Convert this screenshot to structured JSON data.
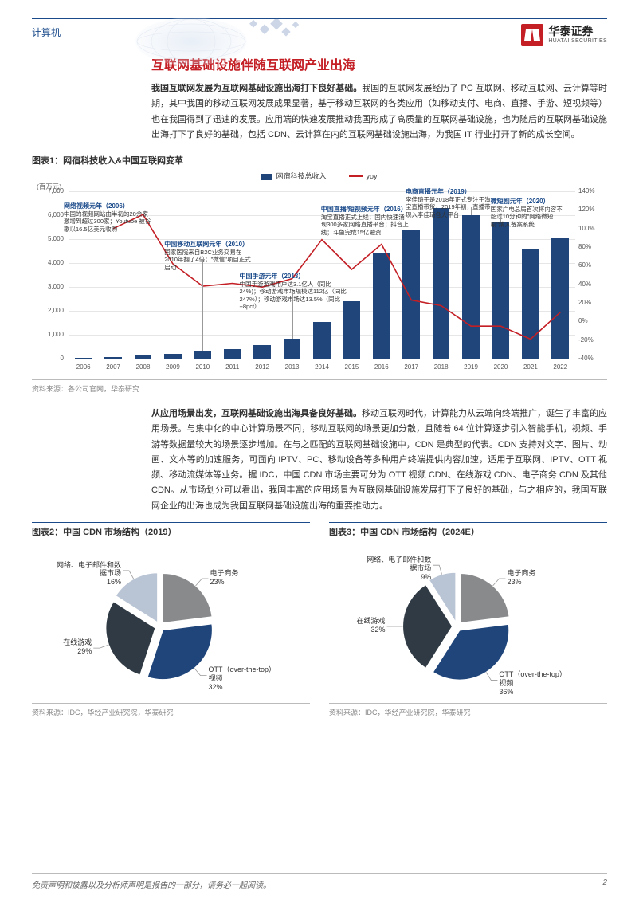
{
  "header": {
    "category": "计算机",
    "logo_cn": "华泰证券",
    "logo_en": "HUATAI SECURITIES"
  },
  "section_title": "互联网基础设施伴随互联网产业出海",
  "para1_lead": "我国互联网发展为互联网基础设施出海打下良好基础。",
  "para1": "我国的互联网发展经历了 PC 互联网、移动互联网、云计算等时期，其中我国的移动互联网发展成果显著，基于移动互联网的各类应用（如移动支付、电商、直播、手游、短视频等）也在我国得到了迅速的发展。应用端的快速发展推动我国形成了高质量的互联网基础设施，也为随后的互联网基础设施出海打下了良好的基础，包括 CDN、云计算在内的互联网基础设施出海，为我国 IT 行业打开了新的成长空间。",
  "chart1": {
    "title": "图表1：网宿科技收入&中国互联网变革",
    "unit_left": "(百万元)",
    "legend_bar": "网宿科技总收入",
    "legend_line": "yoy",
    "years": [
      "2006",
      "2007",
      "2008",
      "2009",
      "2010",
      "2011",
      "2012",
      "2013",
      "2014",
      "2015",
      "2016",
      "2017",
      "2018",
      "2019",
      "2020",
      "2021",
      "2022"
    ],
    "bar_values": [
      30,
      60,
      130,
      210,
      290,
      410,
      560,
      820,
      1540,
      2400,
      4400,
      5400,
      6300,
      6000,
      5700,
      4600,
      5050
    ],
    "yoy_values": [
      0,
      100,
      115,
      62,
      38,
      41,
      37,
      46,
      88,
      56,
      83,
      23,
      17,
      -5,
      -5,
      -19,
      10
    ],
    "y_left": {
      "min": 0,
      "max": 7000,
      "step": 1000
    },
    "y_right": {
      "min": -40,
      "max": 140,
      "step": 20,
      "suffix": "%"
    },
    "bar_color": "#1f457a",
    "line_color": "#c31f25",
    "grid_color": "#e6e6e6",
    "bg_color": "#ffffff",
    "annotations": [
      {
        "key": "a2006",
        "title": "网络视频元年（2006）",
        "body": "中国的视频网站由半初的20余家激增到超过300家；Youtube 被谷歌以16.5亿美元收购"
      },
      {
        "key": "a2010",
        "title": "中国移动互联网元年（2010）",
        "body": "国家医院来自B2C业务交易在2010年翻了4倍；\"微信\"项目正式启动"
      },
      {
        "key": "a2013",
        "title": "中国手游元年（2013）",
        "body": "中国手游游戏用户达3.1亿人（同比24%)；移动游戏市场规模达112亿（同比247%）；移动游戏市场达13.5%（同比+8pct）"
      },
      {
        "key": "a2016",
        "title": "中国直播/短视频元年（2016）",
        "body": "淘宝直播正式上线；国内快速涌现300多家网络直播平台；抖音上线；斗鱼完成15亿融资"
      },
      {
        "key": "a2019",
        "title": "电商直播元年（2019）",
        "body": "李佳琦于是2018年正式专注于淘宝直播带货，2019年初，直播带现入李佳琦各大平台"
      },
      {
        "key": "a2020",
        "title": "微短剧元年（2020）",
        "body": "国家广电总局首次将内容不超过10分钟的\"网络微短剧\"纳入备案系统"
      }
    ],
    "source": "资料来源：各公司官网，华泰研究"
  },
  "para2_lead": "从应用场景出发，互联网基础设施出海具备良好基础。",
  "para2": "移动互联网时代，计算能力从云端向终端推广，诞生了丰富的应用场景。与集中化的中心计算场景不同，移动互联网的场景更加分散，且随着 64 位计算逐步引入智能手机，视频、手游等数据量较大的场景逐步增加。在与之匹配的互联网基础设施中，CDN 是典型的代表。CDN 支持对文字、图片、动画、文本等的加速服务，可面向 IPTV、PC、移动设备等多种用户终端提供内容加速，适用于互联网、IPTV、OTT 视频、移动流媒体等业务。据 IDC，中国 CDN 市场主要可分为 OTT 视频 CDN、在线游戏 CDN、电子商务 CDN 及其他 CDN。从市场划分可以看出，我国丰富的应用场景为互联网基础设施发展打下了良好的基础，与之相应的，我国互联网企业的出海也成为我国互联网基础设施出海的重要推动力。",
  "chart2": {
    "title": "图表2：中国 CDN 市场结构（2019）",
    "type": "pie",
    "slices": [
      {
        "label": "电子商务",
        "value": 23,
        "color": "#888a8c"
      },
      {
        "label": "OTT（over-the-top）视频",
        "value": 32,
        "color": "#1f457a"
      },
      {
        "label": "在线游戏",
        "value": 29,
        "color": "#2f3a44"
      },
      {
        "label": "网络、电子邮件和数据市场",
        "value": 16,
        "color": "#b9c4d4"
      }
    ],
    "bg_color": "#ffffff",
    "source": "资料来源：IDC，华经产业研究院，华泰研究"
  },
  "chart3": {
    "title": "图表3：中国 CDN 市场结构（2024E）",
    "type": "pie",
    "slices": [
      {
        "label": "电子商务",
        "value": 23,
        "color": "#888a8c"
      },
      {
        "label": "OTT（over-the-top）视频",
        "value": 36,
        "color": "#1f457a"
      },
      {
        "label": "在线游戏",
        "value": 32,
        "color": "#2f3a44"
      },
      {
        "label": "网络、电子邮件和数据市场",
        "value": 9,
        "color": "#b9c4d4"
      }
    ],
    "bg_color": "#ffffff",
    "source": "资料来源：IDC，华经产业研究院，华泰研究"
  },
  "footer": {
    "disclaimer": "免责声明和披露以及分析师声明是报告的一部分，请务必一起阅读。",
    "page": "2"
  }
}
